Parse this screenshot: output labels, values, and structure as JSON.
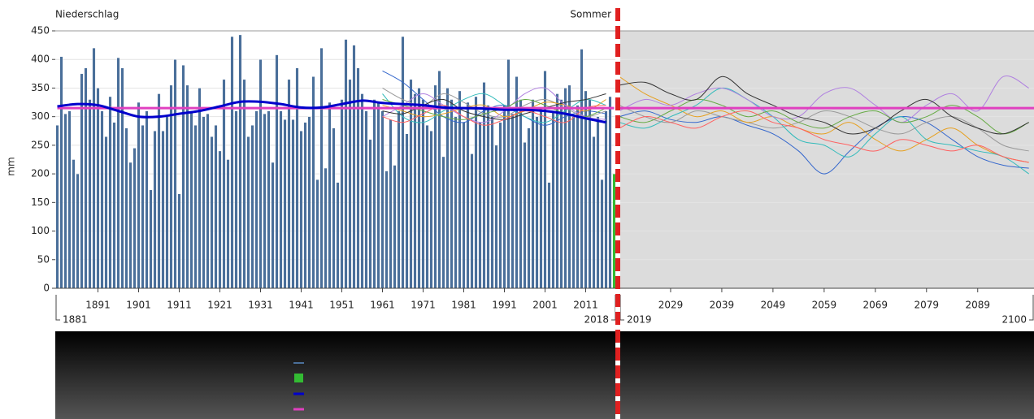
{
  "chart_data": [
    {
      "type": "bar",
      "title": "Niederschlag",
      "y_label": "mm",
      "ylim": [
        0,
        450
      ],
      "yticks": [
        0,
        50,
        100,
        150,
        200,
        250,
        300,
        350,
        400,
        450
      ],
      "grid": true,
      "xlim": [
        1880.5,
        2018.5
      ],
      "xticks": [
        1891,
        1901,
        1911,
        1921,
        1931,
        1941,
        1951,
        1961,
        1971,
        1981,
        1991,
        2001,
        2011
      ],
      "x_end_labels": [
        1881,
        2018
      ],
      "color": "#4a6f9a",
      "x": [
        1881,
        1882,
        1883,
        1884,
        1885,
        1886,
        1887,
        1888,
        1889,
        1890,
        1891,
        1892,
        1893,
        1894,
        1895,
        1896,
        1897,
        1898,
        1899,
        1900,
        1901,
        1902,
        1903,
        1904,
        1905,
        1906,
        1907,
        1908,
        1909,
        1910,
        1911,
        1912,
        1913,
        1914,
        1915,
        1916,
        1917,
        1918,
        1919,
        1920,
        1921,
        1922,
        1923,
        1924,
        1925,
        1926,
        1927,
        1928,
        1929,
        1930,
        1931,
        1932,
        1933,
        1934,
        1935,
        1936,
        1937,
        1938,
        1939,
        1940,
        1941,
        1942,
        1943,
        1944,
        1945,
        1946,
        1947,
        1948,
        1949,
        1950,
        1951,
        1952,
        1953,
        1954,
        1955,
        1956,
        1957,
        1958,
        1959,
        1960,
        1961,
        1962,
        1963,
        1964,
        1965,
        1966,
        1967,
        1968,
        1969,
        1970,
        1971,
        1972,
        1973,
        1974,
        1975,
        1976,
        1977,
        1978,
        1979,
        1980,
        1981,
        1982,
        1983,
        1984,
        1985,
        1986,
        1987,
        1988,
        1989,
        1990,
        1991,
        1992,
        1993,
        1994,
        1995,
        1996,
        1997,
        1998,
        1999,
        2000,
        2001,
        2002,
        2003,
        2004,
        2005,
        2006,
        2007,
        2008,
        2009,
        2010,
        2011,
        2012,
        2013,
        2014,
        2015,
        2016,
        2017
      ],
      "values": [
        285,
        405,
        305,
        310,
        225,
        200,
        375,
        385,
        330,
        420,
        350,
        310,
        265,
        335,
        290,
        403,
        385,
        280,
        220,
        245,
        325,
        285,
        310,
        172,
        275,
        340,
        275,
        300,
        355,
        400,
        165,
        390,
        355,
        310,
        285,
        350,
        300,
        305,
        265,
        285,
        240,
        365,
        225,
        440,
        310,
        443,
        365,
        265,
        285,
        310,
        400,
        305,
        310,
        220,
        408,
        310,
        295,
        365,
        295,
        385,
        275,
        290,
        300,
        370,
        190,
        420,
        210,
        325,
        280,
        185,
        330,
        435,
        365,
        425,
        385,
        340,
        310,
        260,
        330,
        325,
        310,
        205,
        295,
        215,
        310,
        440,
        270,
        365,
        340,
        350,
        330,
        285,
        275,
        355,
        380,
        230,
        350,
        330,
        300,
        345,
        290,
        325,
        235,
        335,
        290,
        360,
        320,
        300,
        250,
        290,
        320,
        400,
        305,
        370,
        330,
        255,
        280,
        330,
        300,
        310,
        380,
        185,
        310,
        340,
        330,
        350,
        355,
        300,
        320,
        418,
        345,
        330,
        265,
        300,
        190,
        310,
        335
      ],
      "series": [
        {
          "kind": "bar",
          "color": "#33bb33",
          "x": [
            2018
          ],
          "values": [
            200
          ]
        },
        {
          "kind": "line",
          "color": "#3366cc",
          "x": [
            1961,
            1966,
            1971,
            1976,
            1981,
            1986,
            1991,
            1996,
            2001,
            2006,
            2011,
            2016
          ],
          "values": [
            380,
            360,
            330,
            300,
            290,
            310,
            320,
            300,
            285,
            300,
            310,
            305
          ]
        },
        {
          "kind": "line",
          "color": "#999999",
          "x": [
            1961,
            1966,
            1971,
            1976,
            1981,
            1986,
            1991,
            1996,
            2001,
            2006,
            2011,
            2016
          ],
          "values": [
            350,
            330,
            320,
            340,
            325,
            305,
            300,
            320,
            330,
            315,
            300,
            310
          ]
        },
        {
          "kind": "line",
          "color": "#e6a020",
          "x": [
            1961,
            1966,
            1971,
            1976,
            1981,
            1986,
            1991,
            1996,
            2001,
            2006,
            2011,
            2016
          ],
          "values": [
            320,
            310,
            300,
            305,
            315,
            320,
            300,
            310,
            325,
            320,
            310,
            330
          ]
        },
        {
          "kind": "line",
          "color": "#33bbbb",
          "x": [
            1961,
            1966,
            1971,
            1976,
            1981,
            1986,
            1991,
            1996,
            2001,
            2006,
            2011,
            2016
          ],
          "values": [
            340,
            300,
            290,
            310,
            330,
            340,
            320,
            300,
            290,
            310,
            330,
            320
          ]
        },
        {
          "kind": "line",
          "color": "#b080e0",
          "x": [
            1961,
            1966,
            1971,
            1976,
            1981,
            1986,
            1991,
            1996,
            2001,
            2006,
            2011,
            2016
          ],
          "values": [
            300,
            320,
            340,
            320,
            300,
            290,
            310,
            340,
            350,
            320,
            300,
            295
          ]
        },
        {
          "kind": "line",
          "color": "#66aa44",
          "x": [
            1961,
            1966,
            1971,
            1976,
            1981,
            1986,
            1991,
            1996,
            2001,
            2006,
            2011,
            2016
          ],
          "values": [
            330,
            320,
            310,
            300,
            295,
            305,
            315,
            330,
            320,
            305,
            300,
            315
          ]
        },
        {
          "kind": "line",
          "color": "#333333",
          "x": [
            1961,
            1966,
            1971,
            1976,
            1981,
            1986,
            1991,
            1996,
            2001,
            2006,
            2011,
            2016
          ],
          "values": [
            310,
            305,
            320,
            330,
            310,
            300,
            295,
            305,
            315,
            325,
            330,
            340
          ]
        },
        {
          "kind": "line",
          "color": "#ff6060",
          "x": [
            1961,
            1966,
            1971,
            1976,
            1981,
            1986,
            1991,
            1996,
            2001,
            2006,
            2011,
            2016
          ],
          "values": [
            300,
            290,
            305,
            320,
            300,
            285,
            295,
            310,
            300,
            290,
            315,
            320
          ]
        },
        {
          "kind": "line",
          "color": "#e040c0",
          "line_width": 3,
          "x": [
            1881,
            2018
          ],
          "values": [
            315,
            315
          ]
        },
        {
          "kind": "line",
          "color": "#0000cc",
          "line_width": 3,
          "x": [
            1881,
            1886,
            1891,
            1896,
            1901,
            1906,
            1911,
            1916,
            1921,
            1926,
            1931,
            1936,
            1941,
            1946,
            1951,
            1956,
            1961,
            1966,
            1971,
            1976,
            1981,
            1986,
            1991,
            1996,
            2001,
            2006,
            2011,
            2016
          ],
          "values": [
            318,
            322,
            320,
            310,
            300,
            300,
            305,
            310,
            318,
            326,
            326,
            322,
            316,
            316,
            322,
            328,
            324,
            322,
            320,
            316,
            315,
            314,
            312,
            312,
            310,
            305,
            297,
            290
          ]
        }
      ]
    },
    {
      "type": "line",
      "annotation": "Sommer",
      "background": "#dcdcdc",
      "ylim": [
        0,
        450
      ],
      "yticks": [
        0,
        50,
        100,
        150,
        200,
        250,
        300,
        350,
        400,
        450
      ],
      "grid": true,
      "xlim": [
        2019,
        2100
      ],
      "xticks": [
        2029,
        2039,
        2049,
        2059,
        2069,
        2079,
        2089
      ],
      "x_end_labels": [
        2019,
        2100
      ],
      "series": [
        {
          "color": "#3366cc",
          "x": [
            2019,
            2024,
            2029,
            2034,
            2039,
            2044,
            2049,
            2054,
            2059,
            2064,
            2069,
            2074,
            2079,
            2084,
            2089,
            2094,
            2099
          ],
          "values": [
            300,
            310,
            295,
            290,
            300,
            285,
            270,
            240,
            200,
            240,
            280,
            300,
            290,
            260,
            230,
            215,
            210
          ]
        },
        {
          "color": "#999999",
          "x": [
            2019,
            2024,
            2029,
            2034,
            2039,
            2044,
            2049,
            2054,
            2059,
            2064,
            2069,
            2074,
            2079,
            2084,
            2089,
            2094,
            2099
          ],
          "values": [
            320,
            300,
            290,
            310,
            300,
            290,
            280,
            290,
            310,
            300,
            280,
            270,
            290,
            300,
            280,
            250,
            240
          ]
        },
        {
          "color": "#e6a020",
          "x": [
            2019,
            2024,
            2029,
            2034,
            2039,
            2044,
            2049,
            2054,
            2059,
            2064,
            2069,
            2074,
            2079,
            2084,
            2089,
            2094,
            2099
          ],
          "values": [
            370,
            340,
            320,
            300,
            310,
            290,
            300,
            280,
            270,
            290,
            260,
            240,
            260,
            280,
            250,
            230,
            220
          ]
        },
        {
          "color": "#33bbbb",
          "x": [
            2019,
            2024,
            2029,
            2034,
            2039,
            2044,
            2049,
            2054,
            2059,
            2064,
            2069,
            2074,
            2079,
            2084,
            2089,
            2094,
            2099
          ],
          "values": [
            290,
            280,
            300,
            320,
            350,
            330,
            300,
            260,
            250,
            230,
            270,
            300,
            260,
            250,
            240,
            230,
            200
          ]
        },
        {
          "color": "#b080e0",
          "x": [
            2019,
            2024,
            2029,
            2034,
            2039,
            2044,
            2049,
            2054,
            2059,
            2064,
            2069,
            2074,
            2079,
            2084,
            2089,
            2094,
            2099
          ],
          "values": [
            310,
            330,
            320,
            340,
            350,
            330,
            300,
            300,
            340,
            350,
            320,
            290,
            320,
            340,
            310,
            370,
            350
          ]
        },
        {
          "color": "#66aa44",
          "x": [
            2019,
            2024,
            2029,
            2034,
            2039,
            2044,
            2049,
            2054,
            2059,
            2064,
            2069,
            2074,
            2079,
            2084,
            2089,
            2094,
            2099
          ],
          "values": [
            300,
            290,
            310,
            330,
            320,
            300,
            310,
            290,
            280,
            300,
            310,
            290,
            300,
            320,
            300,
            270,
            290
          ]
        },
        {
          "color": "#333333",
          "x": [
            2019,
            2024,
            2029,
            2034,
            2039,
            2044,
            2049,
            2054,
            2059,
            2064,
            2069,
            2074,
            2079,
            2084,
            2089,
            2094,
            2099
          ],
          "values": [
            355,
            360,
            340,
            330,
            370,
            340,
            320,
            300,
            290,
            270,
            280,
            310,
            330,
            300,
            280,
            270,
            290
          ]
        },
        {
          "color": "#ff6060",
          "x": [
            2019,
            2024,
            2029,
            2034,
            2039,
            2044,
            2049,
            2054,
            2059,
            2064,
            2069,
            2074,
            2079,
            2084,
            2089,
            2094,
            2099
          ],
          "values": [
            280,
            300,
            290,
            280,
            300,
            310,
            290,
            280,
            260,
            250,
            240,
            260,
            250,
            240,
            250,
            230,
            220
          ]
        },
        {
          "color": "#e040c0",
          "line_width": 3,
          "x": [
            2019,
            2100
          ],
          "values": [
            315,
            315
          ]
        }
      ]
    }
  ]
}
